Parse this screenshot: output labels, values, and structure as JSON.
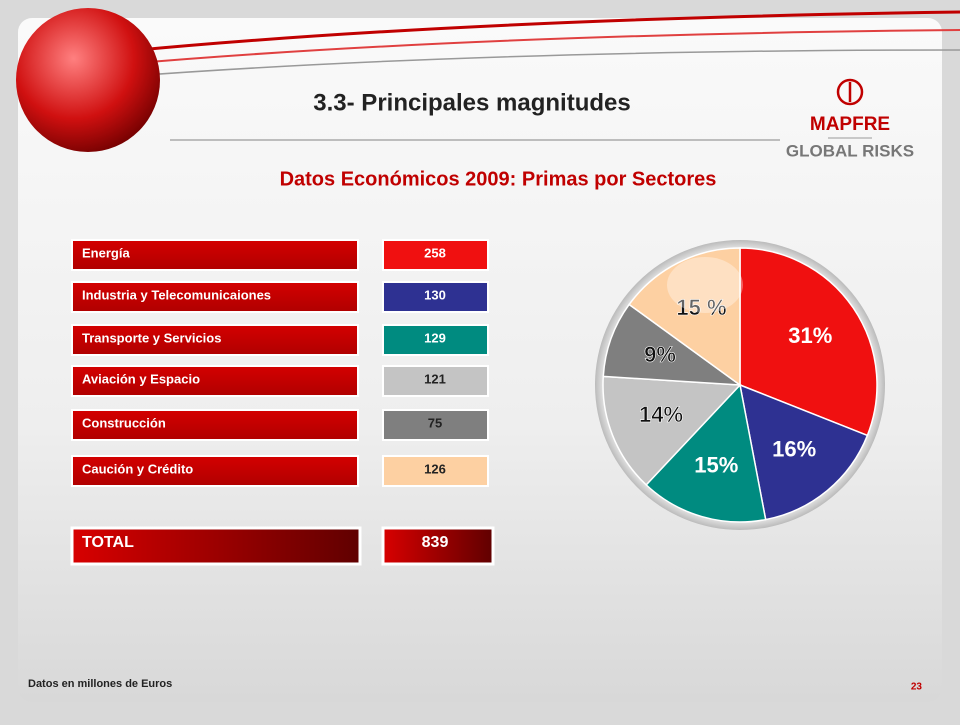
{
  "header": {
    "title": "3.3- Principales magnitudes",
    "logo_brand": "MAPFRE",
    "logo_unit": "GLOBAL RISKS"
  },
  "subtitle": "Datos Económicos 2009: Primas por Sectores",
  "table": {
    "rows": [
      {
        "label": "Energía",
        "value": "258"
      },
      {
        "label": "Industria y Telecomunicaiones",
        "value": "130"
      },
      {
        "label": "Transporte y Servicios",
        "value": "129"
      },
      {
        "label": "Aviación  y Espacio",
        "value": "121"
      },
      {
        "label": "Construcción",
        "value": "75"
      },
      {
        "label": "Caución y Crédito",
        "value": "126"
      }
    ],
    "total": {
      "label": "TOTAL",
      "value": "839"
    }
  },
  "chart_data": {
    "type": "pie",
    "values": [
      31,
      16,
      15,
      14,
      9,
      15
    ],
    "value_labels": [
      "31%",
      "16%",
      "15%",
      "14%",
      "9%",
      "15 %"
    ],
    "colors": [
      "#f01010",
      "#2e3192",
      "#008b80",
      "#c4c4c4",
      "#7f7f7f",
      "#fdd0a2"
    ]
  },
  "footer": {
    "note": "Datos  en millones de Euros",
    "page": "23"
  }
}
